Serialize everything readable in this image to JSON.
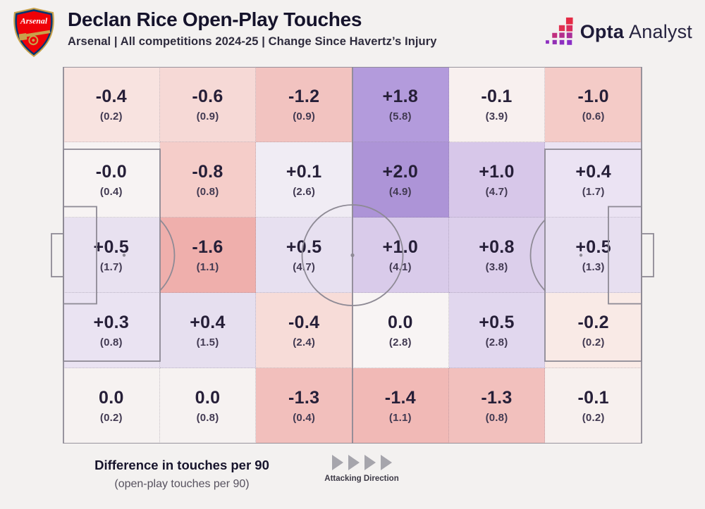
{
  "header": {
    "title": "Declan Rice Open-Play Touches",
    "subtitle": "Arsenal | All competitions 2024-25 | Change Since Havertz’s Injury",
    "club": "Arsenal",
    "brand": {
      "opta": "Opta",
      "analyst": "Analyst"
    }
  },
  "chart_data": {
    "type": "heatmap",
    "title": "Declan Rice Open-Play Touches",
    "subtitle": "Arsenal | All competitions 2024-25 | Change Since Havertz’s Injury",
    "value_label": "Difference in touches per 90",
    "secondary_label": "open-play touches per 90",
    "grid": {
      "rows": 5,
      "cols": 6,
      "orientation": "attacking left to right"
    },
    "rows": [
      [
        {
          "d": "-0.4",
          "b": "0.2",
          "c": "#f8e3e0"
        },
        {
          "d": "-0.6",
          "b": "0.9",
          "c": "#f6d9d6"
        },
        {
          "d": "-1.2",
          "b": "0.9",
          "c": "#f2c3c0"
        },
        {
          "d": "+1.8",
          "b": "5.8",
          "c": "#b39bdc"
        },
        {
          "d": "-0.1",
          "b": "3.9",
          "c": "#f8f0ef"
        },
        {
          "d": "-1.0",
          "b": "0.6",
          "c": "#f4cbc7"
        }
      ],
      [
        {
          "d": "-0.0",
          "b": "0.4",
          "c": "#f7f3f3"
        },
        {
          "d": "-0.8",
          "b": "0.8",
          "c": "#f5cdc9"
        },
        {
          "d": "+0.1",
          "b": "2.6",
          "c": "#f0ecf4"
        },
        {
          "d": "+2.0",
          "b": "4.9",
          "c": "#ad94d7"
        },
        {
          "d": "+1.0",
          "b": "4.7",
          "c": "#d7c7e9"
        },
        {
          "d": "+0.4",
          "b": "1.7",
          "c": "#ebe3f3"
        }
      ],
      [
        {
          "d": "+0.5",
          "b": "1.7",
          "c": "#e8e1f0"
        },
        {
          "d": "-1.6",
          "b": "1.1",
          "c": "#efafac"
        },
        {
          "d": "+0.5",
          "b": "4.7",
          "c": "#e7e0f0"
        },
        {
          "d": "+1.0",
          "b": "4.1",
          "c": "#d9cbea"
        },
        {
          "d": "+0.8",
          "b": "3.8",
          "c": "#dccfeb"
        },
        {
          "d": "+0.5",
          "b": "1.3",
          "c": "#e7dff0"
        }
      ],
      [
        {
          "d": "+0.3",
          "b": "0.8",
          "c": "#eae3f2"
        },
        {
          "d": "+0.4",
          "b": "1.5",
          "c": "#e6dfef"
        },
        {
          "d": "-0.4",
          "b": "2.4",
          "c": "#f7dcd8"
        },
        {
          "d": "0.0",
          "b": "2.8",
          "c": "#f8f4f4"
        },
        {
          "d": "+0.5",
          "b": "2.8",
          "c": "#e1d7ee"
        },
        {
          "d": "-0.2",
          "b": "0.2",
          "c": "#f9eae6"
        }
      ],
      [
        {
          "d": "0.0",
          "b": "0.2",
          "c": "#f6f2f1"
        },
        {
          "d": "0.0",
          "b": "0.8",
          "c": "#f6f2f1"
        },
        {
          "d": "-1.3",
          "b": "0.4",
          "c": "#f2bfbc"
        },
        {
          "d": "-1.4",
          "b": "1.1",
          "c": "#f1b9b6"
        },
        {
          "d": "-1.3",
          "b": "0.8",
          "c": "#f2c0bd"
        },
        {
          "d": "-0.1",
          "b": "0.2",
          "c": "#f7f0ee"
        }
      ]
    ],
    "legend_position": "bottom-left",
    "color_scale": {
      "negative": "#ec9f9c",
      "zero": "#f8f5f4",
      "positive": "#a88dd5"
    }
  },
  "footer": {
    "legend_main": "Difference in touches per 90",
    "legend_sub": "(open-play touches per 90)",
    "attacking_label": "Attacking Direction"
  },
  "colors": {
    "background": "#f3f1f0",
    "pitch_line": "#8e8a95",
    "title_text": "#15132b",
    "value_text": "#261f38",
    "arrow": "#a6a5ac",
    "brand_red": "#e42b45",
    "brand_magenta": "#b42e8d",
    "brand_purple": "#8d2fc0",
    "arsenal_red": "#ef0107",
    "arsenal_navy": "#063672",
    "arsenal_gold": "#c8a24b"
  }
}
